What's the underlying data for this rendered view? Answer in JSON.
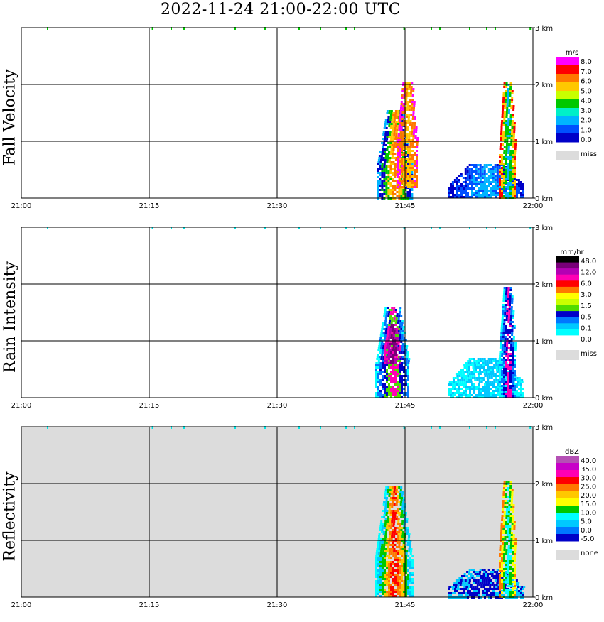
{
  "title": "2022-11-24   21:00-22:00 UTC",
  "chart_data": [
    {
      "type": "heatmap",
      "ylabel": "Fall Velocity",
      "unit": "m/s",
      "x_ticks": [
        "21:00",
        "21:15",
        "21:30",
        "21:45",
        "22:00"
      ],
      "y_ticks": [
        "0 km",
        "1 km",
        "2 km",
        "3 km"
      ],
      "xlim": [
        0,
        60
      ],
      "ylim": [
        0,
        3
      ],
      "legend_labels": [
        "8.0",
        "7.0",
        "6.0",
        "5.0",
        "4.0",
        "3.0",
        "2.0",
        "1.0",
        "0.0",
        "miss"
      ],
      "colors": [
        "#ff00ff",
        "#ff0000",
        "#ff7800",
        "#ffc800",
        "#c8ff00",
        "#00c800",
        "#00f0c8",
        "#00b4ff",
        "#0050ff",
        "#0000c8",
        "#dcdcdc"
      ],
      "features": [
        {
          "x0": 41.7,
          "x1": 45.8,
          "y0": 0.0,
          "y1": 1.55,
          "colors": [
            "#00b4ff",
            "#0000c8",
            "#00c800",
            "#ffc800",
            "#ff7800"
          ]
        },
        {
          "x0": 44.0,
          "x1": 46.5,
          "y0": 0.2,
          "y1": 2.05,
          "colors": [
            "#ff00ff",
            "#ff7800",
            "#ffc800"
          ]
        },
        {
          "x0": 50.0,
          "x1": 59.0,
          "y0": 0.0,
          "y1": 0.6,
          "colors": [
            "#0000c8",
            "#0050ff",
            "#00b4ff"
          ]
        },
        {
          "x0": 56.0,
          "x1": 58.0,
          "y0": 0.0,
          "y1": 2.05,
          "colors": [
            "#ff0000",
            "#ffc800",
            "#00c800",
            "#00b4ff"
          ]
        }
      ]
    },
    {
      "type": "heatmap",
      "ylabel": "Rain Intensity",
      "unit": "mm/hr",
      "x_ticks": [
        "21:00",
        "21:15",
        "21:30",
        "21:45",
        "22:00"
      ],
      "y_ticks": [
        "0 km",
        "1 km",
        "2 km",
        "3 km"
      ],
      "xlim": [
        0,
        60
      ],
      "ylim": [
        0,
        3
      ],
      "legend_labels": [
        "48.0",
        "12.0",
        "6.0",
        "3.0",
        "1.5",
        "0.5",
        "0.1",
        "0.0",
        "miss"
      ],
      "colors": [
        "#000000",
        "#780078",
        "#b400b4",
        "#ff00b4",
        "#ff0000",
        "#ff7800",
        "#ffff00",
        "#c8ff00",
        "#50dc00",
        "#0000c8",
        "#0078ff",
        "#00c8ff",
        "#00ffff",
        "#ffffff",
        "#dcdcdc"
      ],
      "features": [
        {
          "x0": 41.5,
          "x1": 45.5,
          "y0": 0.0,
          "y1": 1.6,
          "colors": [
            "#00ffff",
            "#0078ff",
            "#0000c8",
            "#50dc00",
            "#ff00b4"
          ]
        },
        {
          "x0": 42.5,
          "x1": 44.5,
          "y0": 0.6,
          "y1": 1.3,
          "colors": [
            "#ff00b4",
            "#b400b4",
            "#780078"
          ]
        },
        {
          "x0": 50.0,
          "x1": 59.0,
          "y0": 0.0,
          "y1": 0.7,
          "colors": [
            "#00ffff",
            "#00c8ff"
          ]
        },
        {
          "x0": 56.0,
          "x1": 58.0,
          "y0": 0.0,
          "y1": 1.95,
          "colors": [
            "#00ffff",
            "#0078ff",
            "#0000c8",
            "#ff00b4"
          ]
        }
      ]
    },
    {
      "type": "heatmap",
      "ylabel": "Reflectivity",
      "unit": "dBZ",
      "x_ticks": [
        "21:00",
        "21:15",
        "21:30",
        "21:45",
        "22:00"
      ],
      "y_ticks": [
        "0 km",
        "1 km",
        "2 km",
        "3 km"
      ],
      "xlim": [
        0,
        60
      ],
      "ylim": [
        0,
        3
      ],
      "legend_labels": [
        "40.0",
        "35.0",
        "30.0",
        "25.0",
        "20.0",
        "15.0",
        "10.0",
        "5.0",
        "0.0",
        "-5.0",
        "none"
      ],
      "colors": [
        "#b450b4",
        "#c800c8",
        "#ff00b4",
        "#ff0000",
        "#ff7800",
        "#ffc800",
        "#ffff00",
        "#00c800",
        "#00ffff",
        "#00c8ff",
        "#0078ff",
        "#0000c8",
        "#dcdcdc"
      ],
      "features": [
        {
          "x0": 41.5,
          "x1": 45.8,
          "y0": 0.0,
          "y1": 1.95,
          "colors": [
            "#00ffff",
            "#00c8ff",
            "#00c800",
            "#ffc800",
            "#ff7800",
            "#ff0000"
          ]
        },
        {
          "x0": 50.0,
          "x1": 59.0,
          "y0": 0.0,
          "y1": 0.5,
          "colors": [
            "#00c8ff",
            "#0000c8"
          ]
        },
        {
          "x0": 56.0,
          "x1": 58.0,
          "y0": 0.0,
          "y1": 2.05,
          "colors": [
            "#ff7800",
            "#ffff00",
            "#00c800",
            "#00ffff"
          ]
        }
      ]
    }
  ]
}
